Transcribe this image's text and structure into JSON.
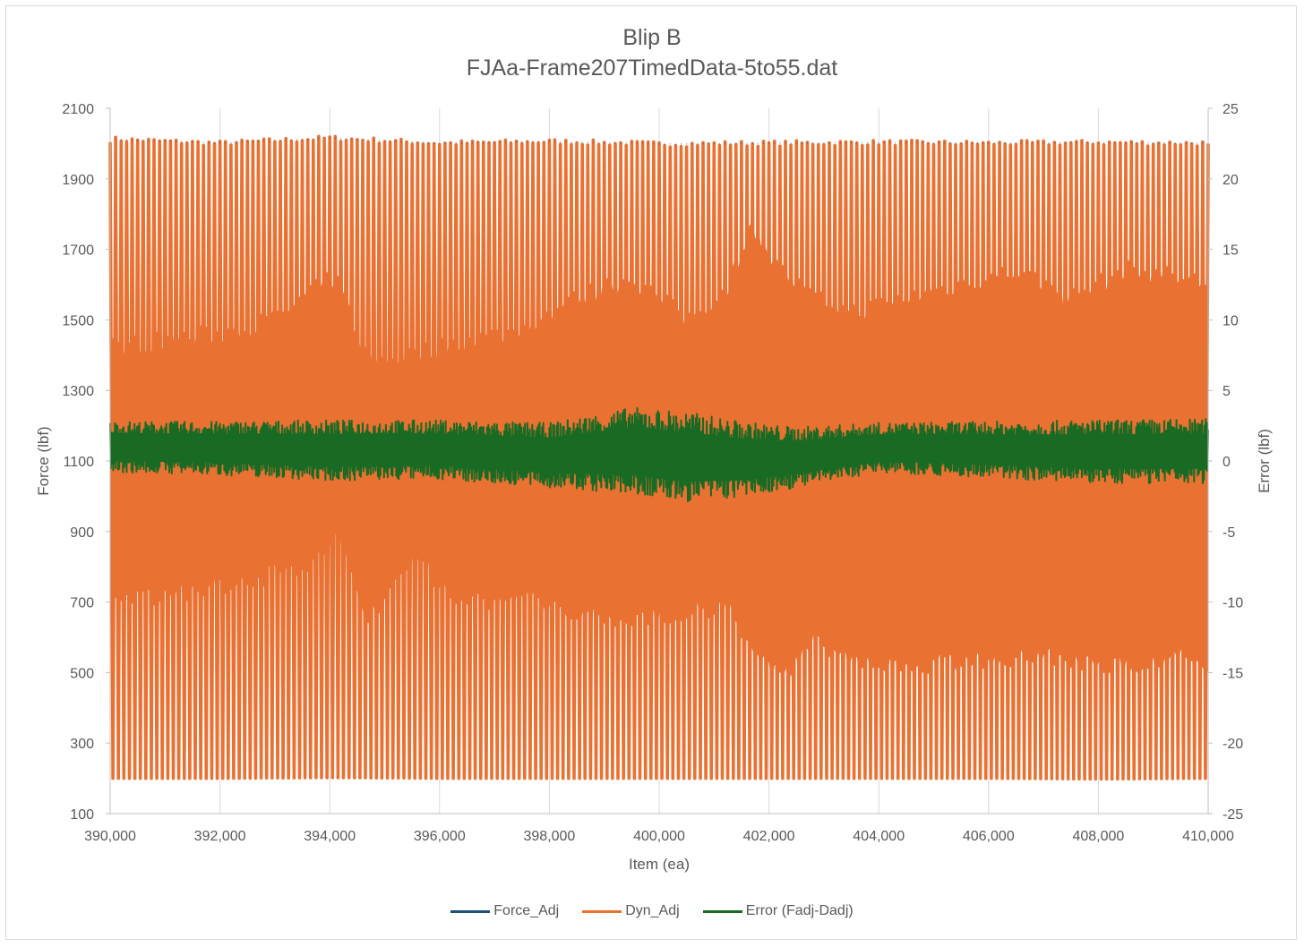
{
  "chart_data": {
    "type": "line",
    "title": "Blip B",
    "subtitle": "FJAa-Frame207TimedData-5to55.dat",
    "xlabel": "Item (ea)",
    "ylabel": "Force (lbf)",
    "y2label": "Error (lbf)",
    "xlim": [
      390000,
      410000
    ],
    "ylim": [
      100,
      2100
    ],
    "y2lim": [
      -25,
      25
    ],
    "xticks": [
      "390,000",
      "392,000",
      "394,000",
      "396,000",
      "398,000",
      "400,000",
      "402,000",
      "404,000",
      "406,000",
      "408,000",
      "410,000"
    ],
    "yticks": [
      "100",
      "300",
      "500",
      "700",
      "900",
      "1100",
      "1300",
      "1500",
      "1700",
      "1900",
      "2100"
    ],
    "y2ticks": [
      "-25",
      "-20",
      "-15",
      "-10",
      "-5",
      "0",
      "5",
      "10",
      "15",
      "20",
      "25"
    ],
    "grid": "vertical",
    "legend_position": "bottom",
    "series": [
      {
        "name": "Force_Adj",
        "axis": "left",
        "color": "#1f4e79",
        "cycles": 200,
        "peaks": [
          2012,
          2000,
          2015,
          2000,
          2005,
          1998,
          2000,
          2002,
          2000,
          2002,
          2000
        ],
        "troughs": [
          200,
          200,
          202,
          200,
          200,
          200,
          200,
          200,
          200,
          198,
          200
        ]
      },
      {
        "name": "Dyn_Adj",
        "axis": "left",
        "color": "#e97132",
        "cycles": 200,
        "peaks": [
          2012,
          2000,
          2015,
          2000,
          2005,
          1998,
          2000,
          2002,
          2000,
          2002,
          2000
        ],
        "troughs": [
          200,
          200,
          202,
          200,
          200,
          200,
          200,
          200,
          200,
          198,
          200
        ],
        "inner_high_x": [
          390000,
          391000,
          392000,
          393000,
          393700,
          394100,
          394700,
          395500,
          396500,
          397500,
          398500,
          399500,
          400500,
          401200,
          401700,
          402200,
          402800,
          403500,
          404500,
          405500,
          406500,
          407500,
          408500,
          409500,
          410000
        ],
        "inner_high": [
          1420,
          1440,
          1460,
          1500,
          1580,
          1620,
          1380,
          1400,
          1440,
          1470,
          1560,
          1620,
          1500,
          1580,
          1760,
          1640,
          1560,
          1520,
          1560,
          1600,
          1640,
          1560,
          1640,
          1620,
          1600
        ],
        "inner_low_x": [
          390000,
          391000,
          392000,
          393000,
          393700,
          394100,
          394700,
          395500,
          396500,
          397500,
          398500,
          399500,
          400500,
          401200,
          401700,
          402200,
          402800,
          403500,
          404500,
          405500,
          406500,
          407500,
          408500,
          409500,
          410000
        ],
        "inner_low": [
          700,
          720,
          750,
          780,
          820,
          900,
          660,
          820,
          700,
          720,
          660,
          660,
          660,
          700,
          580,
          480,
          600,
          520,
          520,
          540,
          540,
          540,
          520,
          540,
          520
        ]
      },
      {
        "name": "Error (Fadj-Dadj)",
        "axis": "right",
        "color": "#196b24",
        "env_x": [
          390000,
          392000,
          394000,
          396000,
          398000,
          399500,
          400500,
          401500,
          402500,
          404000,
          406000,
          408000,
          410000
        ],
        "env_high": [
          2.8,
          2.8,
          2.9,
          2.9,
          2.7,
          3.8,
          3.5,
          2.8,
          2.4,
          2.7,
          2.8,
          2.9,
          3.0
        ],
        "env_low": [
          -0.8,
          -1.0,
          -1.4,
          -1.3,
          -1.9,
          -2.4,
          -2.9,
          -2.6,
          -1.9,
          -0.8,
          -1.2,
          -1.6,
          -1.6
        ]
      }
    ]
  }
}
